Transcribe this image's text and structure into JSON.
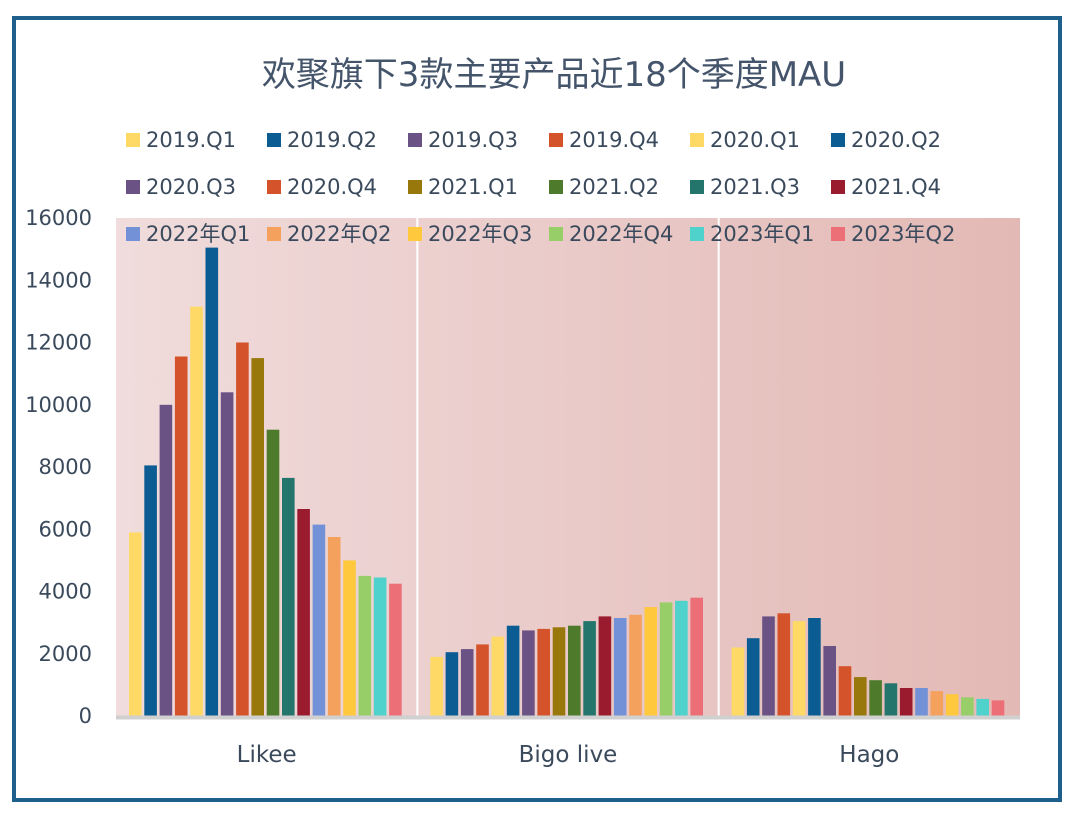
{
  "chart_data": {
    "type": "bar",
    "title": "欢聚旗下3款主要产品近18个季度MAU",
    "xlabel": "",
    "ylabel": "",
    "ylim": [
      0,
      16000
    ],
    "yticks": [
      "0",
      "2000",
      "4000",
      "6000",
      "8000",
      "10000",
      "12000",
      "14000",
      "16000"
    ],
    "categories": [
      "Likee",
      "Bigo live",
      "Hago"
    ],
    "legend_position": "top",
    "grid": false,
    "series": [
      {
        "name": "2019.Q1",
        "color": "#ffd966",
        "values": [
          5900,
          1900,
          2200
        ]
      },
      {
        "name": "2019.Q2",
        "color": "#0b5c92",
        "values": [
          8050,
          2050,
          2500
        ]
      },
      {
        "name": "2019.Q3",
        "color": "#6b5285",
        "values": [
          10000,
          2150,
          3200
        ]
      },
      {
        "name": "2019.Q4",
        "color": "#d4532b",
        "values": [
          11550,
          2300,
          3300
        ]
      },
      {
        "name": "2020.Q1",
        "color": "#ffd966",
        "values": [
          13150,
          2550,
          3050
        ]
      },
      {
        "name": "2020.Q2",
        "color": "#0b5c92",
        "values": [
          15050,
          2900,
          3150
        ]
      },
      {
        "name": "2020.Q3",
        "color": "#6b5285",
        "values": [
          10400,
          2750,
          2250
        ]
      },
      {
        "name": "2020.Q4",
        "color": "#d4532b",
        "values": [
          12000,
          2800,
          1600
        ]
      },
      {
        "name": "2021.Q1",
        "color": "#98780a",
        "values": [
          11500,
          2850,
          1250
        ]
      },
      {
        "name": "2021.Q2",
        "color": "#4e7a2c",
        "values": [
          9200,
          2900,
          1150
        ]
      },
      {
        "name": "2021.Q3",
        "color": "#24756b",
        "values": [
          7650,
          3050,
          1050
        ]
      },
      {
        "name": "2021.Q4",
        "color": "#9b1b2e",
        "values": [
          6650,
          3200,
          900
        ]
      },
      {
        "name": "2022年Q1",
        "color": "#7391d6",
        "values": [
          6150,
          3150,
          900
        ]
      },
      {
        "name": "2022年Q2",
        "color": "#f4a15d",
        "values": [
          5750,
          3250,
          800
        ]
      },
      {
        "name": "2022年Q3",
        "color": "#ffc83d",
        "values": [
          5000,
          3500,
          700
        ]
      },
      {
        "name": "2022年Q4",
        "color": "#98ce68",
        "values": [
          4500,
          3650,
          600
        ]
      },
      {
        "name": "2023年Q1",
        "color": "#4fd2cc",
        "values": [
          4450,
          3700,
          550
        ]
      },
      {
        "name": "2023年Q2",
        "color": "#ec6f78",
        "values": [
          4250,
          3800,
          500
        ]
      }
    ]
  }
}
